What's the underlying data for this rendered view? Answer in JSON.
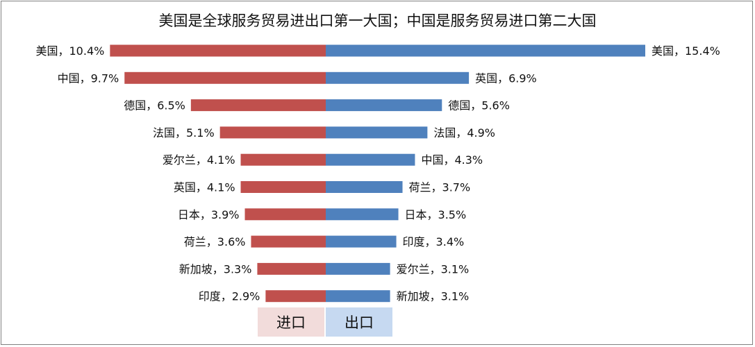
{
  "chart_data": {
    "type": "bar",
    "title": "美国是全球服务贸易进出口第一大国；中国是服务贸易进口第二大国",
    "xlim": [
      0,
      16
    ],
    "separator": "，",
    "unit": "%",
    "series": [
      {
        "name": "进口",
        "color": "#C0504D",
        "legend_bg": "#F2DCDB",
        "categories": [
          "美国",
          "中国",
          "德国",
          "法国",
          "爱尔兰",
          "英国",
          "日本",
          "荷兰",
          "新加坡",
          "印度"
        ],
        "values": [
          10.4,
          9.7,
          6.5,
          5.1,
          4.1,
          4.1,
          3.9,
          3.6,
          3.3,
          2.9
        ]
      },
      {
        "name": "出口",
        "color": "#4F81BD",
        "legend_bg": "#C6D9F1",
        "categories": [
          "美国",
          "英国",
          "德国",
          "法国",
          "中国",
          "荷兰",
          "日本",
          "印度",
          "爱尔兰",
          "新加坡"
        ],
        "values": [
          15.4,
          6.9,
          5.6,
          4.9,
          4.3,
          3.7,
          3.5,
          3.4,
          3.1,
          3.1
        ]
      }
    ]
  }
}
